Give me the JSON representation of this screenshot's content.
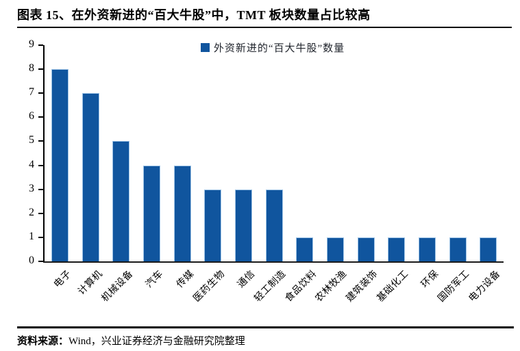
{
  "header": {
    "title": "图表 15、在外资新进的“百大牛股”中，TMT 板块数量占比较高"
  },
  "legend": {
    "label": "外资新进的“百大牛股”数量"
  },
  "footer": {
    "source_label": "资料来源：",
    "source_text": "Wind，兴业证券经济与金融研究院整理"
  },
  "colors": {
    "bar_fill": "#10559E",
    "bar_border": "#9DC3E6",
    "axis": "#000000",
    "legend_text": "#20242C"
  },
  "chart_data": {
    "type": "bar",
    "title": "外资新进的“百大牛股”数量",
    "categories": [
      "电子",
      "计算机",
      "机械设备",
      "汽车",
      "传媒",
      "医药生物",
      "通信",
      "轻工制造",
      "食品饮料",
      "农林牧渔",
      "建筑装饰",
      "基础化工",
      "环保",
      "国防军工",
      "电力设备"
    ],
    "values": [
      8,
      7,
      5,
      4,
      4,
      3,
      3,
      3,
      1,
      1,
      1,
      1,
      1,
      1,
      1
    ],
    "xlabel": "",
    "ylabel": "",
    "ylim": [
      0,
      9
    ],
    "ytick_step": 1,
    "grid": false,
    "legend_position": "top-center",
    "x_label_rotation_deg": 45
  }
}
